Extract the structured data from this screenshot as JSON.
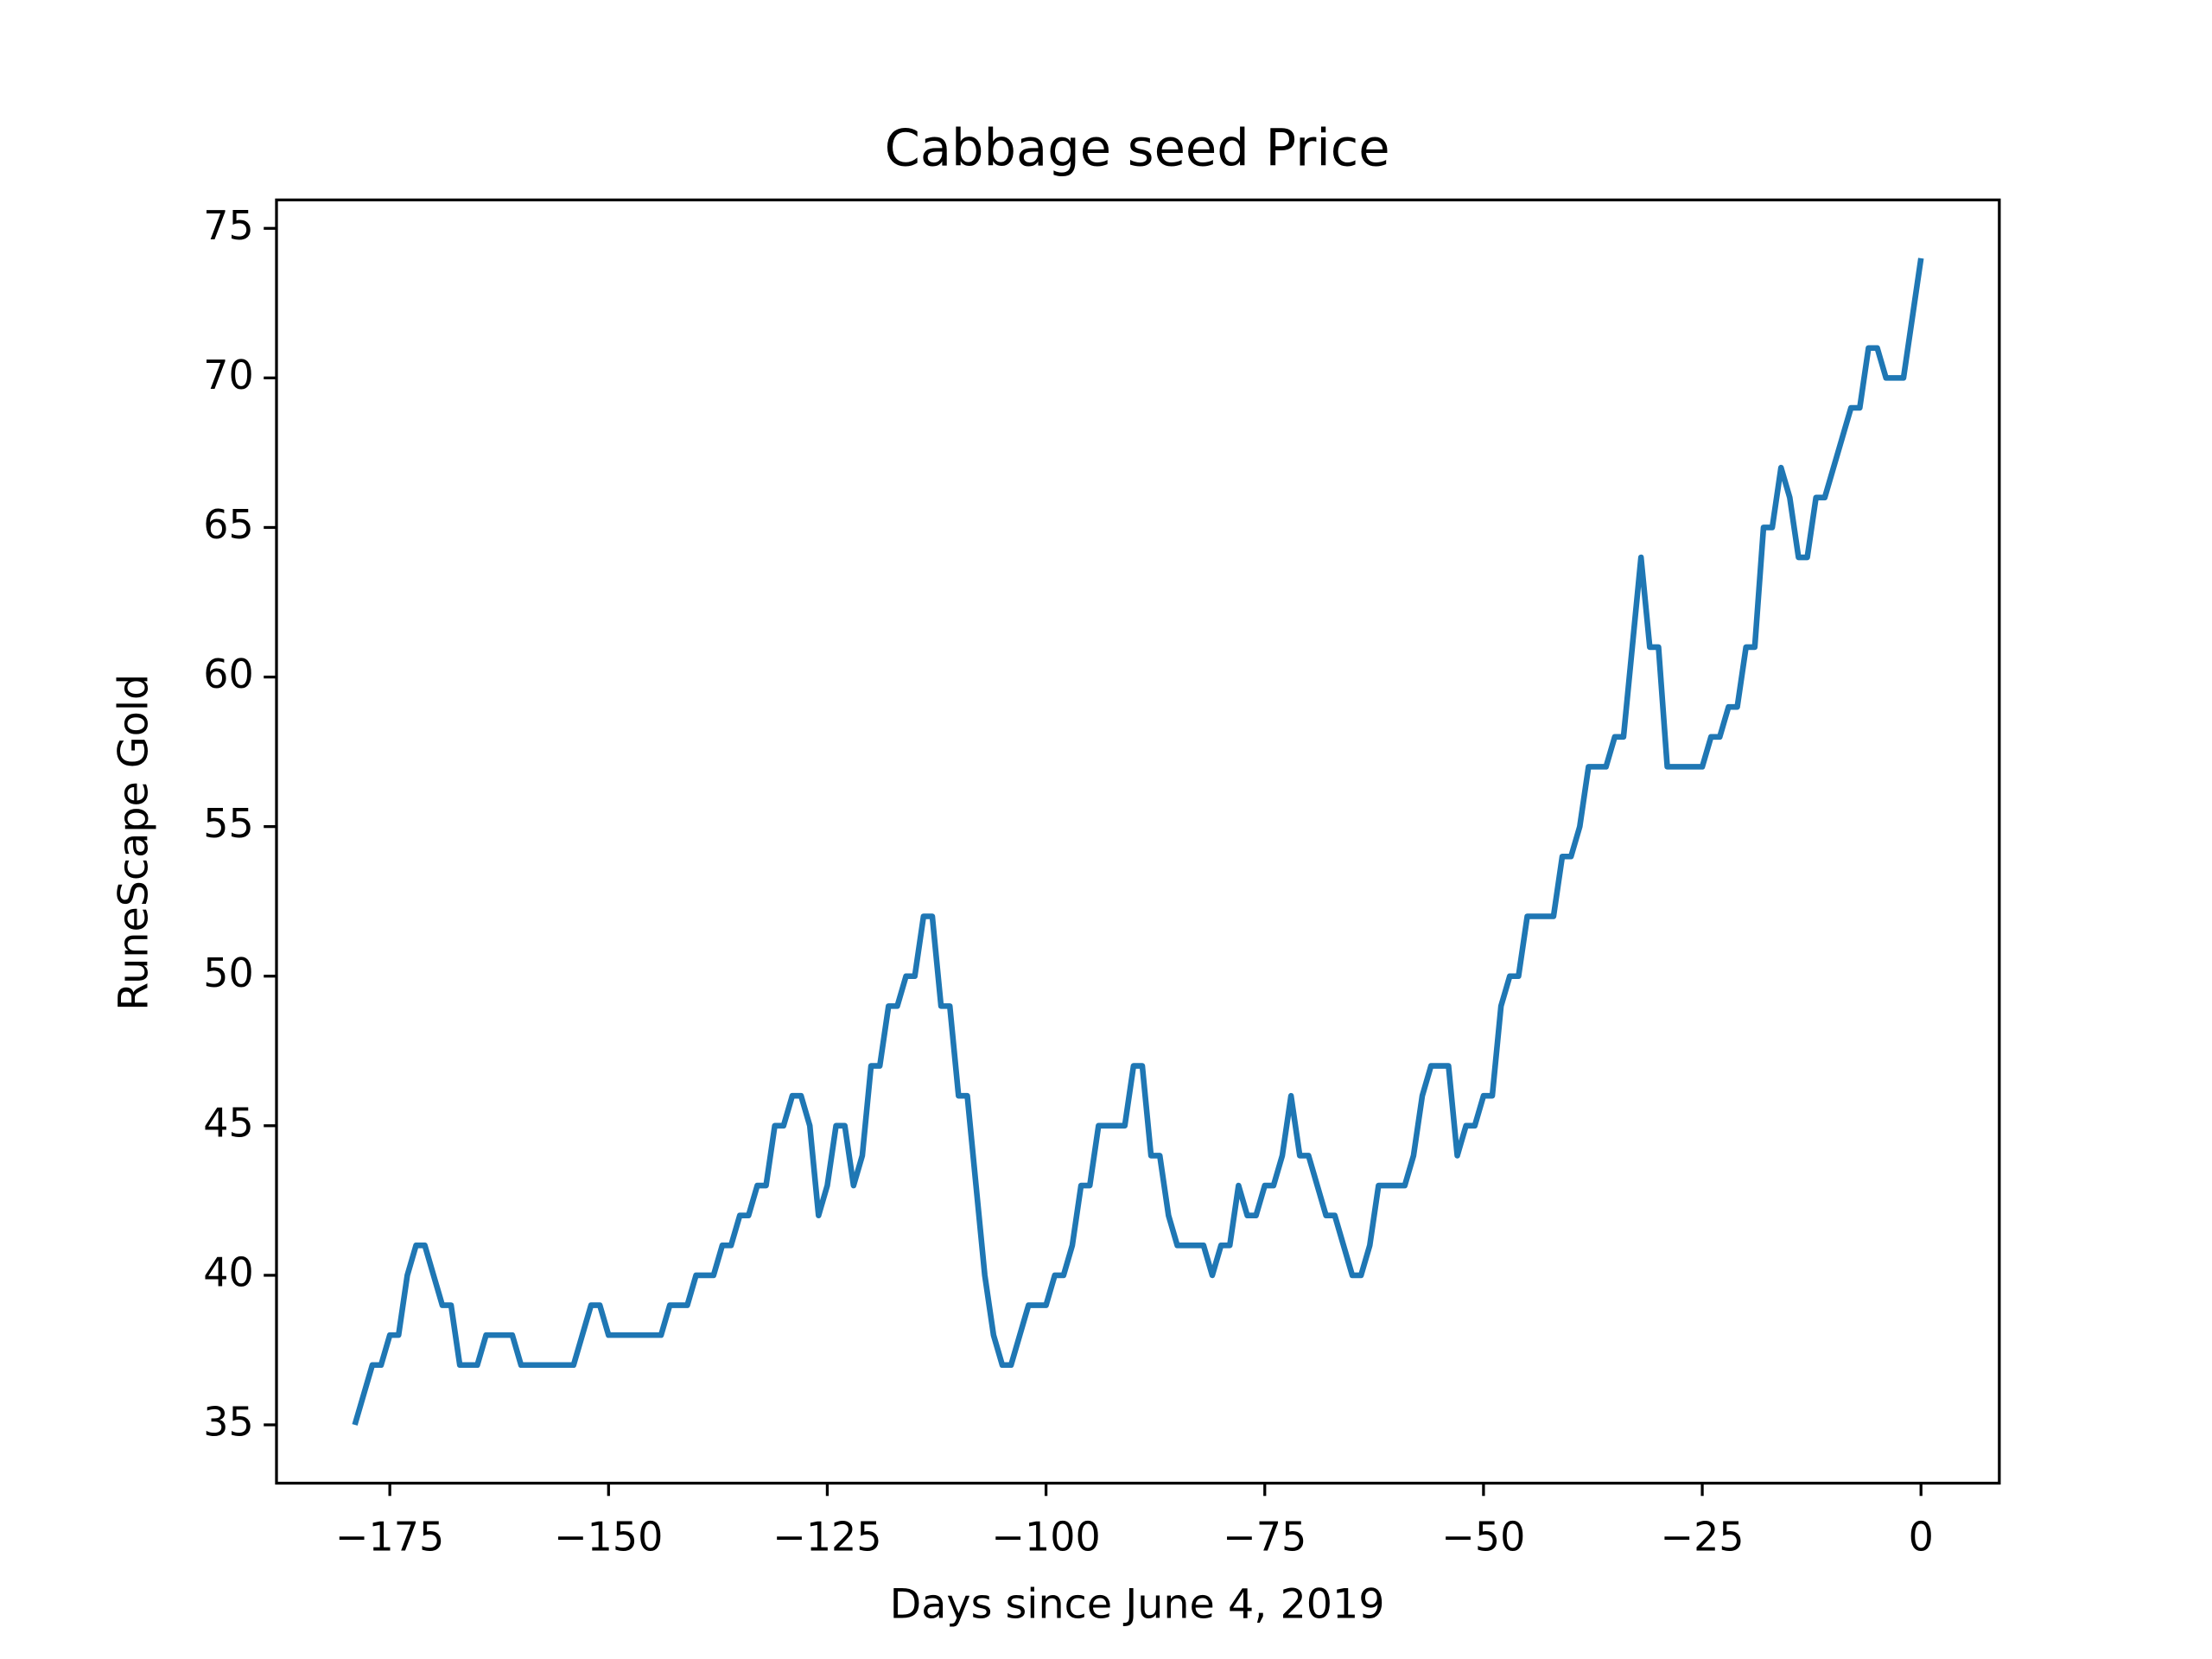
{
  "chart_data": {
    "type": "line",
    "title": "Cabbage seed Price",
    "xlabel": "Days since June 4, 2019",
    "ylabel": "RuneScape Gold",
    "x": [
      -179,
      -178,
      -177,
      -176,
      -175,
      -174,
      -173,
      -172,
      -171,
      -170,
      -169,
      -168,
      -167,
      -166,
      -165,
      -164,
      -163,
      -162,
      -161,
      -160,
      -159,
      -158,
      -157,
      -156,
      -155,
      -154,
      -153,
      -152,
      -151,
      -150,
      -149,
      -148,
      -147,
      -146,
      -145,
      -144,
      -143,
      -142,
      -141,
      -140,
      -139,
      -138,
      -137,
      -136,
      -135,
      -134,
      -133,
      -132,
      -131,
      -130,
      -129,
      -128,
      -127,
      -126,
      -125,
      -124,
      -123,
      -122,
      -121,
      -120,
      -119,
      -118,
      -117,
      -116,
      -115,
      -114,
      -113,
      -112,
      -111,
      -110,
      -109,
      -108,
      -107,
      -106,
      -105,
      -104,
      -103,
      -102,
      -101,
      -100,
      -99,
      -98,
      -97,
      -96,
      -95,
      -94,
      -93,
      -92,
      -91,
      -90,
      -89,
      -88,
      -87,
      -86,
      -85,
      -84,
      -83,
      -82,
      -81,
      -80,
      -79,
      -78,
      -77,
      -76,
      -75,
      -74,
      -73,
      -72,
      -71,
      -70,
      -69,
      -68,
      -67,
      -66,
      -65,
      -64,
      -63,
      -62,
      -61,
      -60,
      -59,
      -58,
      -57,
      -56,
      -55,
      -54,
      -53,
      -52,
      -51,
      -50,
      -49,
      -48,
      -47,
      -46,
      -45,
      -44,
      -43,
      -42,
      -41,
      -40,
      -39,
      -38,
      -37,
      -36,
      -35,
      -34,
      -33,
      -32,
      -31,
      -30,
      -29,
      -28,
      -27,
      -26,
      -25,
      -24,
      -23,
      -22,
      -21,
      -20,
      -19,
      -18,
      -17,
      -16,
      -15,
      -14,
      -13,
      -12,
      -11,
      -10,
      -9,
      -8,
      -7,
      -6,
      -5,
      -4,
      -3,
      -2,
      -1,
      0
    ],
    "series": [
      {
        "name": "Cabbage seed",
        "color": "#1f77b4",
        "values": [
          35,
          36,
          37,
          37,
          38,
          38,
          40,
          41,
          41,
          40,
          39,
          39,
          37,
          37,
          37,
          38,
          38,
          38,
          38,
          37,
          37,
          37,
          37,
          37,
          37,
          37,
          38,
          39,
          39,
          38,
          38,
          38,
          38,
          38,
          38,
          38,
          39,
          39,
          39,
          40,
          40,
          40,
          41,
          41,
          42,
          42,
          43,
          43,
          45,
          45,
          46,
          46,
          45,
          42,
          43,
          45,
          45,
          43,
          44,
          47,
          47,
          49,
          49,
          50,
          50,
          52,
          52,
          49,
          49,
          46,
          46,
          43,
          40,
          38,
          37,
          37,
          38,
          39,
          39,
          39,
          40,
          40,
          41,
          43,
          43,
          45,
          45,
          45,
          45,
          47,
          47,
          44,
          44,
          42,
          41,
          41,
          41,
          41,
          40,
          41,
          41,
          43,
          42,
          42,
          43,
          43,
          44,
          46,
          44,
          44,
          43,
          42,
          42,
          41,
          40,
          40,
          41,
          43,
          43,
          43,
          43,
          44,
          46,
          47,
          47,
          47,
          44,
          45,
          45,
          46,
          46,
          49,
          50,
          50,
          52,
          52,
          52,
          52,
          54,
          54,
          55,
          57,
          57,
          57,
          58,
          58,
          61,
          64,
          61,
          61,
          57,
          57,
          57,
          57,
          57,
          58,
          58,
          59,
          59,
          61,
          61,
          65,
          65,
          67,
          66,
          64,
          64,
          66,
          66,
          67,
          68,
          69,
          69,
          71,
          71,
          70,
          70,
          70,
          72,
          74
        ]
      }
    ],
    "xlim": [
      -187.95,
      8.95
    ],
    "ylim": [
      33.05,
      75.95
    ],
    "xticks": [
      {
        "value": -175,
        "label": "−175"
      },
      {
        "value": -150,
        "label": "−150"
      },
      {
        "value": -125,
        "label": "−125"
      },
      {
        "value": -100,
        "label": "−100"
      },
      {
        "value": -75,
        "label": "−75"
      },
      {
        "value": -50,
        "label": "−50"
      },
      {
        "value": -25,
        "label": "−25"
      },
      0
    ],
    "yticks": [
      35,
      40,
      45,
      50,
      55,
      60,
      65,
      70,
      75
    ],
    "grid": false
  }
}
